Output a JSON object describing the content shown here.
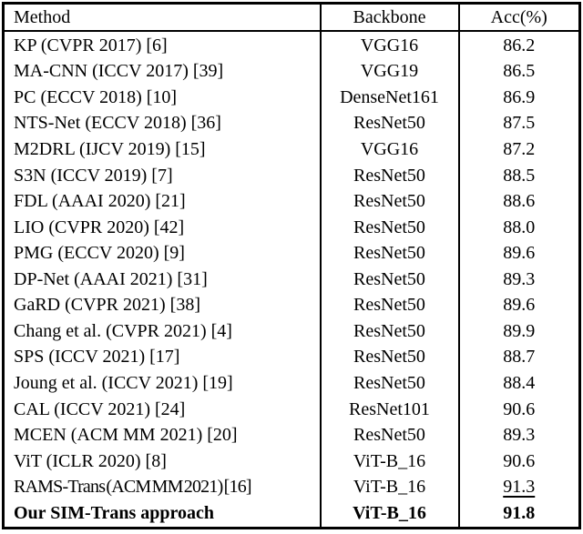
{
  "colors": {
    "background": "#ffffff",
    "text": "#000000",
    "border": "#000000"
  },
  "table": {
    "headers": {
      "method": "Method",
      "backbone": "Backbone",
      "acc": "Acc(%)"
    },
    "rows": [
      {
        "method": "KP (CVPR 2017) [6]",
        "backbone": "VGG16",
        "acc": "86.2",
        "bold": false,
        "underline_acc": false
      },
      {
        "method": "MA-CNN (ICCV 2017) [39]",
        "backbone": "VGG19",
        "acc": "86.5",
        "bold": false,
        "underline_acc": false
      },
      {
        "method": "PC (ECCV 2018) [10]",
        "backbone": "DenseNet161",
        "acc": "86.9",
        "bold": false,
        "underline_acc": false
      },
      {
        "method": "NTS-Net (ECCV 2018) [36]",
        "backbone": "ResNet50",
        "acc": "87.5",
        "bold": false,
        "underline_acc": false
      },
      {
        "method": "M2DRL (IJCV 2019) [15]",
        "backbone": "VGG16",
        "acc": "87.2",
        "bold": false,
        "underline_acc": false
      },
      {
        "method": "S3N (ICCV 2019) [7]",
        "backbone": "ResNet50",
        "acc": "88.5",
        "bold": false,
        "underline_acc": false
      },
      {
        "method": "FDL (AAAI 2020) [21]",
        "backbone": "ResNet50",
        "acc": "88.6",
        "bold": false,
        "underline_acc": false
      },
      {
        "method": "LIO (CVPR 2020) [42]",
        "backbone": "ResNet50",
        "acc": "88.0",
        "bold": false,
        "underline_acc": false
      },
      {
        "method": "PMG (ECCV 2020) [9]",
        "backbone": "ResNet50",
        "acc": "89.6",
        "bold": false,
        "underline_acc": false
      },
      {
        "method": "DP-Net (AAAI 2021) [31]",
        "backbone": "ResNet50",
        "acc": "89.3",
        "bold": false,
        "underline_acc": false
      },
      {
        "method": "GaRD (CVPR 2021) [38]",
        "backbone": "ResNet50",
        "acc": "89.6",
        "bold": false,
        "underline_acc": false
      },
      {
        "method": "Chang et al. (CVPR 2021) [4]",
        "backbone": "ResNet50",
        "acc": "89.9",
        "bold": false,
        "underline_acc": false
      },
      {
        "method": "SPS (ICCV 2021) [17]",
        "backbone": "ResNet50",
        "acc": "88.7",
        "bold": false,
        "underline_acc": false
      },
      {
        "method": "Joung et al. (ICCV 2021) [19]",
        "backbone": "ResNet50",
        "acc": "88.4",
        "bold": false,
        "underline_acc": false
      },
      {
        "method": "CAL (ICCV 2021) [24]",
        "backbone": "ResNet101",
        "acc": "90.6",
        "bold": false,
        "underline_acc": false
      },
      {
        "method": "MCEN (ACM MM 2021) [20]",
        "backbone": "ResNet50",
        "acc": "89.3",
        "bold": false,
        "underline_acc": false
      },
      {
        "method": "ViT (ICLR 2020) [8]",
        "backbone": "ViT-B_16",
        "acc": "90.6",
        "bold": false,
        "underline_acc": false
      },
      {
        "method": "RAMS-Trans (ACM MM 2021) [16]",
        "backbone": "ViT-B_16",
        "acc": "91.3",
        "bold": false,
        "underline_acc": true
      },
      {
        "method": "Our SIM-Trans approach",
        "backbone": "ViT-B_16",
        "acc": "91.8",
        "bold": true,
        "underline_acc": false
      }
    ]
  }
}
